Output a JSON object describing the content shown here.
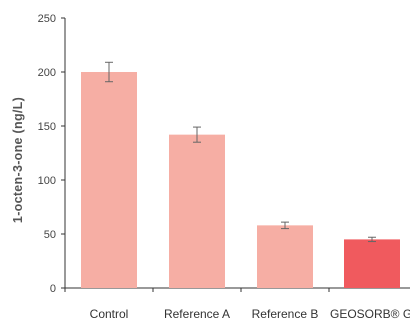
{
  "chart_data": {
    "type": "bar",
    "title": "",
    "xlabel": "",
    "ylabel": "1-octen-3-one (ng/L)",
    "ylim": [
      0,
      250
    ],
    "yticks": [
      0,
      50,
      100,
      150,
      200,
      250
    ],
    "categories": [
      "Control",
      "Reference A",
      "Reference B",
      "GEOSORB® GI"
    ],
    "values": [
      200,
      142,
      58,
      45
    ],
    "error": [
      9,
      7,
      3,
      2
    ],
    "colors": [
      "#f6aea4",
      "#f6aea4",
      "#f6aea4",
      "#f05a5e"
    ],
    "grid": false,
    "legend": "none"
  }
}
